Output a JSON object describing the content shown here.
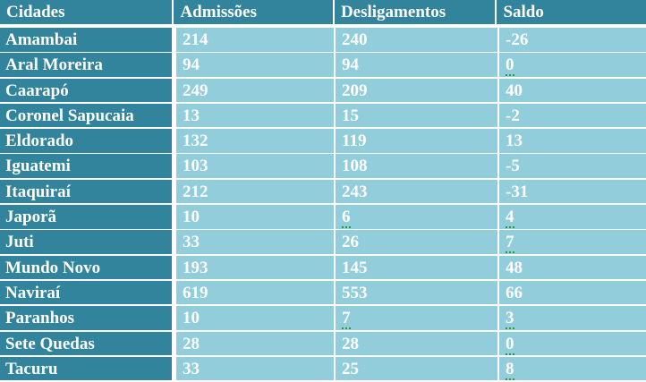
{
  "table": {
    "headers": [
      "Cidades",
      "Admissões",
      "Desligamentos",
      "Saldo"
    ],
    "rows": [
      {
        "city": "Amambai",
        "admissoes": "214",
        "desligamentos": "240",
        "saldo": "-26"
      },
      {
        "city": "Aral Moreira",
        "admissoes": "94",
        "desligamentos": "94",
        "saldo": "0"
      },
      {
        "city": "Caarapó",
        "admissoes": "249",
        "desligamentos": "209",
        "saldo": "40"
      },
      {
        "city": "Coronel Sapucaia",
        "admissoes": "13",
        "desligamentos": "15",
        "saldo": "-2"
      },
      {
        "city": "Eldorado",
        "admissoes": "132",
        "desligamentos": "119",
        "saldo": "13"
      },
      {
        "city": "Iguatemi",
        "admissoes": "103",
        "desligamentos": "108",
        "saldo": "-5"
      },
      {
        "city": "Itaquiraí",
        "admissoes": "212",
        "desligamentos": "243",
        "saldo": "-31"
      },
      {
        "city": "Japorã",
        "admissoes": "10",
        "desligamentos": "6",
        "saldo": "4"
      },
      {
        "city": "Juti",
        "admissoes": "33",
        "desligamentos": "26",
        "saldo": "7"
      },
      {
        "city": "Mundo Novo",
        "admissoes": "193",
        "desligamentos": "145",
        "saldo": "48"
      },
      {
        "city": "Naviraí",
        "admissoes": "619",
        "desligamentos": "553",
        "saldo": "66"
      },
      {
        "city": "Paranhos",
        "admissoes": "10",
        "desligamentos": "7",
        "saldo": "3"
      },
      {
        "city": "Sete Quedas",
        "admissoes": "28",
        "desligamentos": "28",
        "saldo": "0"
      },
      {
        "city": "Tacuru",
        "admissoes": "33",
        "desligamentos": "25",
        "saldo": "8"
      }
    ]
  },
  "colors": {
    "header_bg": "#31849b",
    "city_bg": "#31849b",
    "value_bg": "#92cddc",
    "text": "#ffffff",
    "spellcheck_underline": "#2f9a2f"
  }
}
